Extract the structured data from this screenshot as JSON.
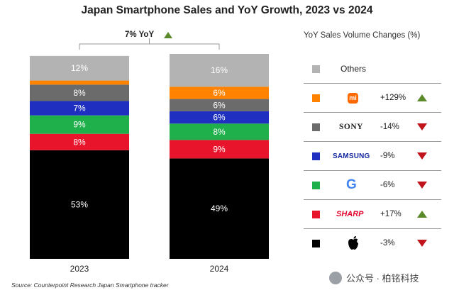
{
  "title": "Japan Smartphone Sales and YoY Growth, 2023 vs 2024",
  "yoy_label": "7% YoY",
  "source": "Source: Counterpoint Research Japan Smartphone tracker",
  "watermark": "公众号 · 柏铭科技",
  "legend": {
    "title": "YoY Sales Volume Changes (%)",
    "items": [
      {
        "brand": "Others",
        "color": "#b3b3b3",
        "change": "",
        "direction": ""
      },
      {
        "brand": "Xiaomi",
        "color": "#ff8200",
        "change": "+129%",
        "direction": "up"
      },
      {
        "brand": "SONY",
        "color": "#6b6b6b",
        "change": "-14%",
        "direction": "down"
      },
      {
        "brand": "SAMSUNG",
        "color": "#1f2fbf",
        "change": "-9%",
        "direction": "down"
      },
      {
        "brand": "Google",
        "color": "#1fb04c",
        "change": "-6%",
        "direction": "down"
      },
      {
        "brand": "SHARP",
        "color": "#e8142c",
        "change": "+17%",
        "direction": "up"
      },
      {
        "brand": "Apple",
        "color": "#000000",
        "change": "-3%",
        "direction": "down"
      }
    ]
  },
  "chart_data": {
    "type": "bar",
    "stacked": true,
    "normalized": true,
    "title": "Japan Smartphone Sales and YoY Growth, 2023 vs 2024",
    "categories": [
      "2023",
      "2024"
    ],
    "series": [
      {
        "name": "Apple",
        "color": "#000000",
        "values": [
          53,
          49
        ],
        "labels": [
          "53%",
          "49%"
        ]
      },
      {
        "name": "SHARP",
        "color": "#e8142c",
        "values": [
          8,
          9
        ],
        "labels": [
          "8%",
          "9%"
        ]
      },
      {
        "name": "Google",
        "color": "#1fb04c",
        "values": [
          9,
          8
        ],
        "labels": [
          "9%",
          "8%"
        ]
      },
      {
        "name": "SAMSUNG",
        "color": "#1f2fbf",
        "values": [
          7,
          6
        ],
        "labels": [
          "7%",
          "6%"
        ]
      },
      {
        "name": "SONY",
        "color": "#6b6b6b",
        "values": [
          8,
          6
        ],
        "labels": [
          "8%",
          "6%"
        ]
      },
      {
        "name": "Xiaomi",
        "color": "#ff8200",
        "values": [
          2,
          6
        ],
        "labels": [
          "",
          "6%"
        ]
      },
      {
        "name": "Others",
        "color": "#b3b3b3",
        "values": [
          12,
          16
        ],
        "labels": [
          "12%",
          "16%"
        ]
      }
    ],
    "total_growth": "7% YoY",
    "ylim": [
      0,
      100
    ]
  }
}
